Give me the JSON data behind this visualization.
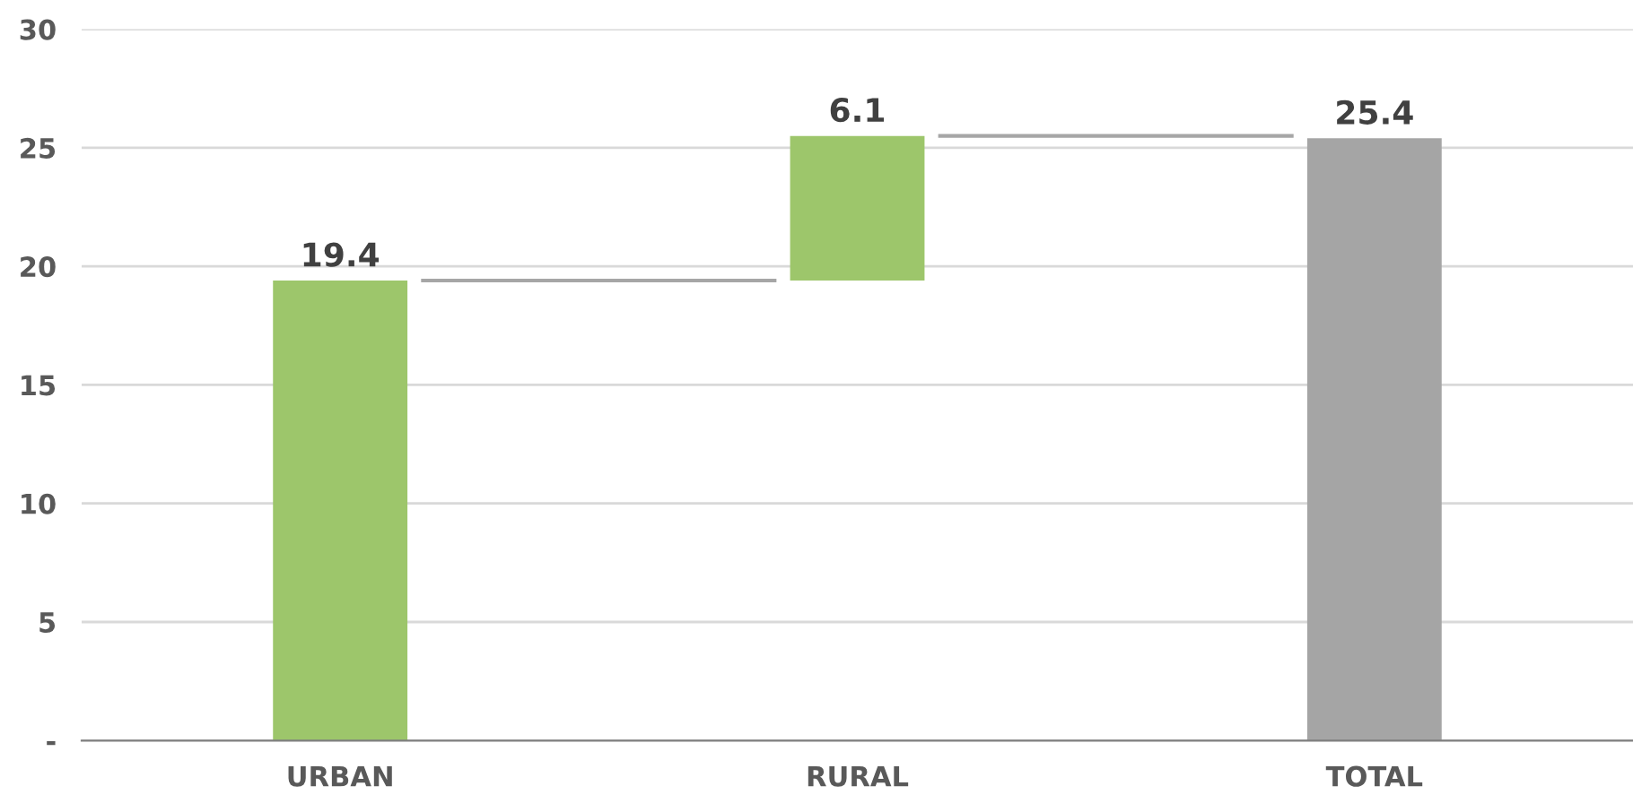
{
  "chart_data": {
    "type": "bar",
    "categories": [
      "URBAN",
      "RURAL",
      "TOTAL"
    ],
    "values": [
      19.4,
      6.1,
      25.4
    ],
    "base": [
      0,
      19.4,
      0
    ],
    "colors": [
      "#9dc66b",
      "#9dc66b",
      "#a5a5a5"
    ],
    "ylim": [
      0,
      30
    ],
    "yticks": [
      {
        "value": 0,
        "label": "-"
      },
      5,
      10,
      15,
      20,
      25,
      30
    ],
    "grid": "y",
    "data_labels": true
  }
}
